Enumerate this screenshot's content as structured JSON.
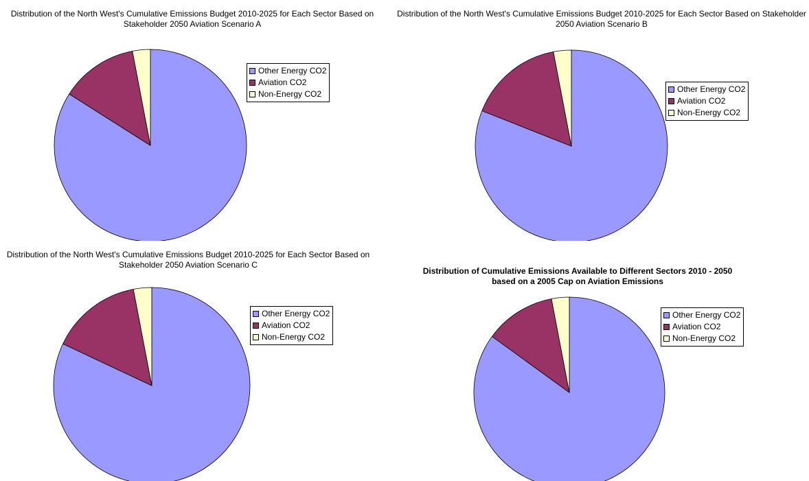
{
  "colors": {
    "Other Energy CO2": "#9999ff",
    "Aviation CO2": "#993366",
    "Non-Energy CO2": "#ffffcc"
  },
  "chart_data": [
    {
      "type": "pie",
      "title": "Distribution of the North West's Cumulative Emissions Budget 2010-2025 for Each Sector Based on Stakeholder 2050 Aviation Scenario A",
      "categories": [
        "Other Energy CO2",
        "Aviation CO2",
        "Non-Energy CO2"
      ],
      "values": [
        84,
        13,
        3
      ],
      "legend": "right"
    },
    {
      "type": "pie",
      "title": "Distribution of the North West's Cumulative Emissions Budget 2010-2025 for Each Sector Based on Stakeholder 2050 Aviation Scenario B",
      "categories": [
        "Other Energy CO2",
        "Aviation CO2",
        "Non-Energy CO2"
      ],
      "values": [
        81,
        16,
        3
      ],
      "legend": "right"
    },
    {
      "type": "pie",
      "title": "Distribution of the North West's Cumulative Emissions Budget 2010-2025 for Each Sector Based on Stakeholder 2050 Aviation Scenario C",
      "categories": [
        "Other Energy CO2",
        "Aviation CO2",
        "Non-Energy CO2"
      ],
      "values": [
        82,
        15,
        3
      ],
      "legend": "right"
    },
    {
      "type": "pie",
      "title": "Distribution of Cumulative Emissions Available to Different Sectors 2010 - 2050 based on a 2005 Cap on Aviation Emissions",
      "categories": [
        "Other Energy CO2",
        "Aviation CO2",
        "Non-Energy CO2"
      ],
      "values": [
        85,
        12,
        3
      ],
      "legend": "right"
    }
  ]
}
